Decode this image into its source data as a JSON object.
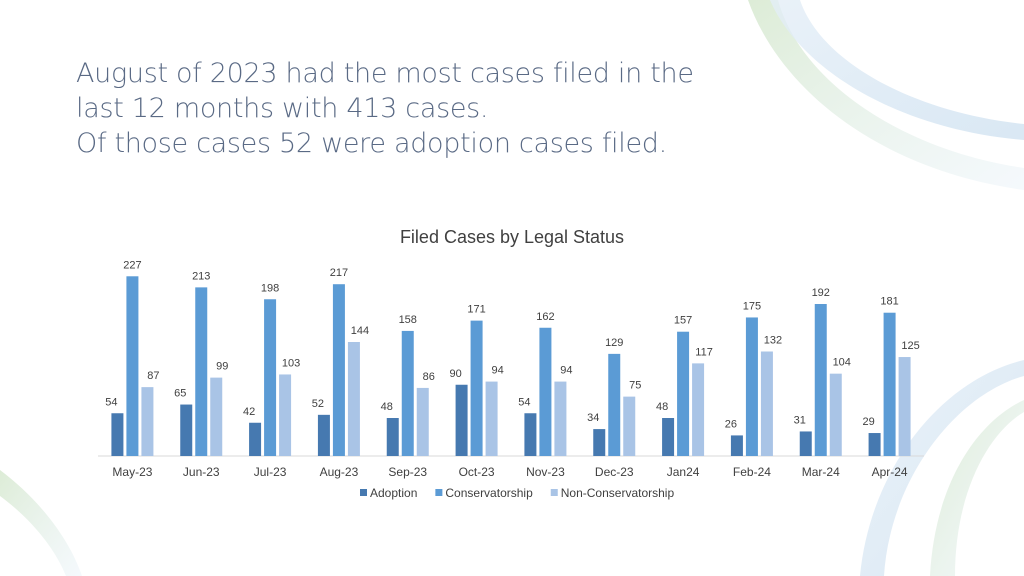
{
  "headline": {
    "line1": "August of 2023 had the most cases filed in the",
    "line2": "last 12 months with 413 cases.",
    "line3": "Of those cases 52 were adoption cases filed."
  },
  "colors": {
    "adoption": "#4679b0",
    "conservatorship": "#5b9bd5",
    "non_conservatorship": "#a9c4e6",
    "headline": "#5a6a85",
    "deco_green": "#c9e0c0",
    "deco_blue": "#d7e6f2"
  },
  "chart_data": {
    "type": "bar",
    "title": "Filed Cases by Legal Status",
    "categories": [
      "May-23",
      "Jun-23",
      "Jul-23",
      "Aug-23",
      "Sep-23",
      "Oct-23",
      "Nov-23",
      "Dec-23",
      "Jan24",
      "Feb-24",
      "Mar-24",
      "Apr-24"
    ],
    "series": [
      {
        "name": "Adoption",
        "key": "adoption",
        "values": [
          54,
          65,
          42,
          52,
          48,
          90,
          54,
          34,
          48,
          26,
          31,
          29
        ]
      },
      {
        "name": "Conservatorship",
        "key": "conservatorship",
        "values": [
          227,
          213,
          198,
          217,
          158,
          171,
          162,
          129,
          157,
          175,
          192,
          181
        ]
      },
      {
        "name": "Non-Conservatorship",
        "key": "non_conservatorship",
        "values": [
          87,
          99,
          103,
          144,
          86,
          94,
          94,
          75,
          117,
          132,
          104,
          125
        ]
      }
    ],
    "ylim": [
      0,
      240
    ],
    "xlabel": "",
    "ylabel": "",
    "grid": false,
    "legend": "bottom-center"
  }
}
